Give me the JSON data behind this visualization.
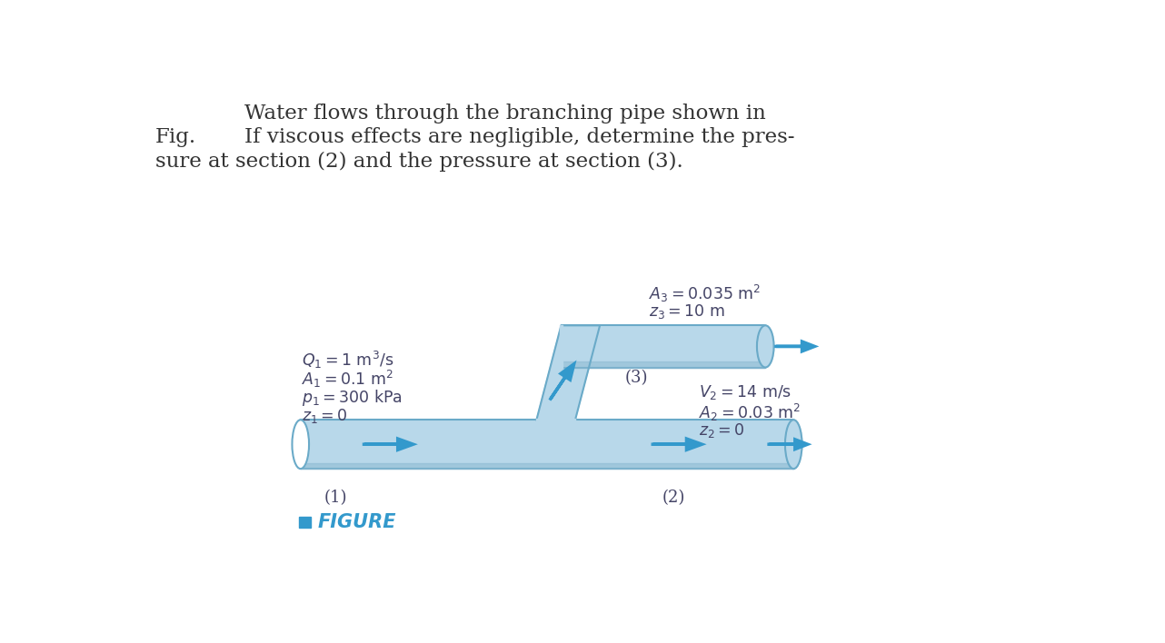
{
  "title_line1": "Water flows through the branching pipe shown in",
  "title_line2": "If viscous effects are negligible, determine the pres-",
  "title_line3": "sure at section (2) and the pressure at section (3).",
  "fig_label": "Fig.",
  "bg_color": "#ffffff",
  "pipe_fill": "#b8d8ea",
  "pipe_edge": "#6aaac8",
  "arrow_color": "#3399cc",
  "text_dark": "#333333",
  "text_label": "#444466",
  "s1_Q": "$Q_1 = 1\\ \\mathrm{m^3/s}$",
  "s1_A": "$A_1 = 0.1\\ \\mathrm{m^2}$",
  "s1_p": "$p_1 = 300\\ \\mathrm{kPa}$",
  "s1_z": "$z_1 = 0$",
  "s3_A": "$A_3 = 0.035\\ \\mathrm{m^2}$",
  "s3_z": "$z_3 = 10\\ \\mathrm{m}$",
  "s2_V": "$V_2 = 14\\ \\mathrm{m/s}$",
  "s2_A": "$A_2 = 0.03\\ \\mathrm{m^2}$",
  "s2_z": "$z_2 = 0$",
  "sec1": "(1)",
  "sec2": "(2)",
  "sec3": "(3)"
}
